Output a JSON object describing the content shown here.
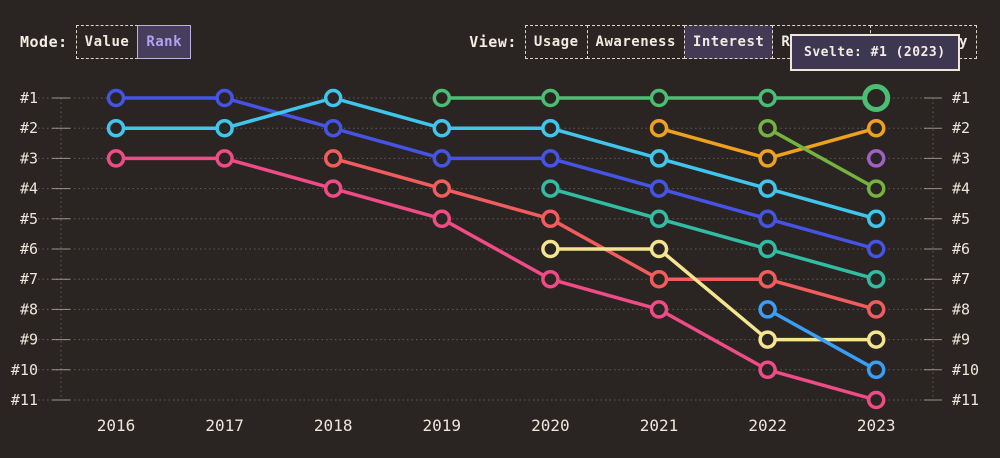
{
  "toolbar": {
    "mode_label": "Mode:",
    "mode_buttons": [
      {
        "label": "Value",
        "selected": false
      },
      {
        "label": "Rank",
        "selected": true
      }
    ],
    "view_label": "View:",
    "view_buttons": [
      {
        "label": "Usage",
        "selected": false
      },
      {
        "label": "Awareness",
        "selected": false
      },
      {
        "label": "Interest",
        "selected": true
      },
      {
        "label": "Retention",
        "selected": false,
        "covered_by_tooltip": true
      },
      {
        "label": "Positivity",
        "selected": false
      }
    ]
  },
  "tooltip": {
    "text": "Svelte: #1 (2023)"
  },
  "chart_data": {
    "type": "line",
    "subtype": "bump-rank-chart",
    "years": [
      "2016",
      "2017",
      "2018",
      "2019",
      "2020",
      "2021",
      "2022",
      "2023"
    ],
    "rank_labels": [
      "#1",
      "#2",
      "#3",
      "#4",
      "#5",
      "#6",
      "#7",
      "#8",
      "#9",
      "#10",
      "#11"
    ],
    "ylim": [
      1,
      11
    ],
    "grid": "dotted-horizontal",
    "axes": {
      "left_labels": true,
      "right_labels": true
    },
    "series": [
      {
        "id": "royal-blue",
        "color": "#4554e4",
        "ranks": {
          "2016": 1,
          "2017": 1,
          "2018": 2,
          "2019": 3,
          "2020": 3,
          "2021": 4,
          "2022": 5,
          "2023": 6
        }
      },
      {
        "id": "cyan",
        "color": "#40c6ec",
        "ranks": {
          "2016": 2,
          "2017": 2,
          "2018": 1,
          "2019": 2,
          "2020": 2,
          "2021": 3,
          "2022": 4,
          "2023": 5
        }
      },
      {
        "id": "pink",
        "color": "#ef4b87",
        "ranks": {
          "2016": 3,
          "2017": 3,
          "2018": 4,
          "2019": 5,
          "2020": 7,
          "2021": 8,
          "2022": 10,
          "2023": 11
        }
      },
      {
        "id": "salmon-red",
        "color": "#f15d5d",
        "ranks": {
          "2018": 3,
          "2019": 4,
          "2020": 5,
          "2021": 7,
          "2022": 7,
          "2023": 8
        }
      },
      {
        "id": "teal",
        "color": "#31bda3",
        "ranks": {
          "2020": 4,
          "2021": 5,
          "2022": 6,
          "2023": 7
        }
      },
      {
        "id": "pale-yellow",
        "color": "#f4e58e",
        "ranks": {
          "2020": 6,
          "2021": 6,
          "2022": 9,
          "2023": 9
        }
      },
      {
        "id": "orange",
        "color": "#efa11e",
        "ranks": {
          "2021": 2,
          "2022": 3,
          "2023": 2
        }
      },
      {
        "id": "apple-green",
        "color": "#75b33f",
        "ranks": {
          "2022": 2,
          "2023": 4
        }
      },
      {
        "id": "dodger-blue",
        "color": "#3a9ef4",
        "ranks": {
          "2022": 8,
          "2023": 10
        }
      },
      {
        "id": "svelte-green",
        "label": "Svelte",
        "color": "#4abf74",
        "ranks": {
          "2019": 1,
          "2020": 1,
          "2021": 1,
          "2022": 1,
          "2023": 1
        }
      },
      {
        "id": "purple",
        "color": "#a061c4",
        "ranks": {
          "2023": 3
        }
      }
    ],
    "highlight": {
      "series": "svelte-green",
      "year": "2023",
      "tooltip_text": "Svelte: #1 (2023)"
    }
  }
}
